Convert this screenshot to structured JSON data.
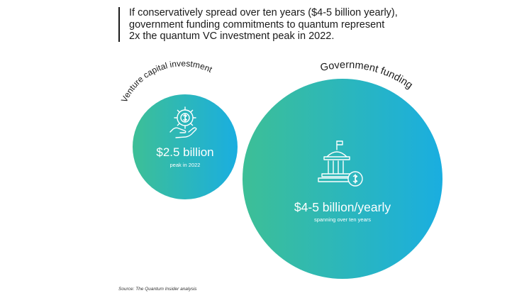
{
  "intro": {
    "line1": "If conservatively spread over ten years ($4-5 billion yearly),",
    "line2": "government funding commitments to quantum represent",
    "line3": "2x the quantum VC investment peak in 2022."
  },
  "venture": {
    "label": "Venture capital investment",
    "value": "$2.5 billion",
    "sub": "peak in 2022",
    "icon": "gear-hand-dollar-icon"
  },
  "government": {
    "label": "Government funding",
    "value": "$4-5 billion/yearly",
    "sub": "spanning over ten years",
    "icon": "government-building-dollar-icon"
  },
  "source": "Source: The Quantum Insider analysis",
  "colors": {
    "gradient_start": "#3dbf96",
    "gradient_end": "#1aaee0",
    "text": "#1a1a1a"
  }
}
